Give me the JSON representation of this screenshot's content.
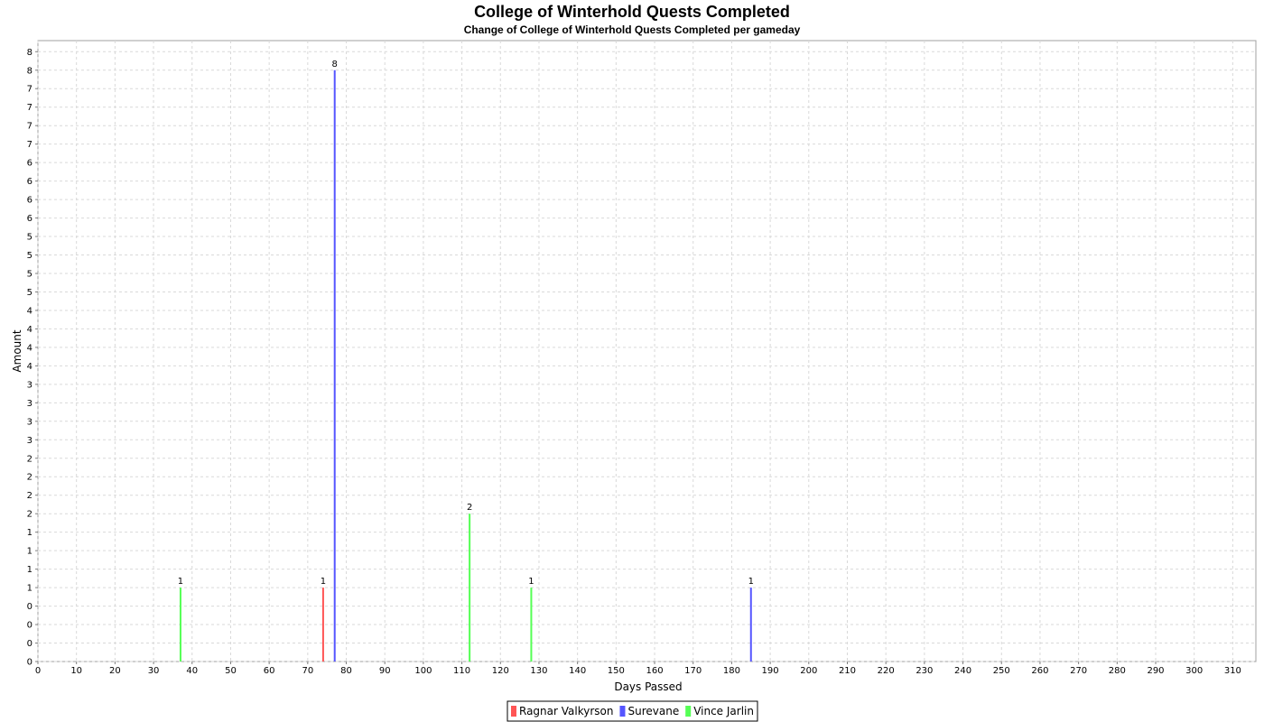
{
  "chart_data": {
    "type": "bar",
    "title": "College of Winterhold Quests Completed",
    "subtitle": "Change of College of Winterhold Quests Completed per gameday",
    "xlabel": "Days Passed",
    "ylabel": "Amount",
    "xlim": [
      0,
      316
    ],
    "ylim": [
      0,
      8.4
    ],
    "x_ticks": [
      0,
      10,
      20,
      30,
      40,
      50,
      60,
      70,
      80,
      90,
      100,
      110,
      120,
      130,
      140,
      150,
      160,
      170,
      180,
      190,
      200,
      210,
      220,
      230,
      240,
      250,
      260,
      270,
      280,
      290,
      300,
      310
    ],
    "y_tick_step": 0.25,
    "grid": true,
    "legend_position": "bottom-center",
    "series": [
      {
        "name": "Ragnar Valkyrson",
        "color": "#ff5555",
        "points": [
          {
            "x": 74,
            "y": 1
          }
        ]
      },
      {
        "name": "Surevane",
        "color": "#5555ff",
        "points": [
          {
            "x": 77,
            "y": 8
          },
          {
            "x": 185,
            "y": 1
          }
        ]
      },
      {
        "name": "Vince Jarlin",
        "color": "#55ff55",
        "points": [
          {
            "x": 37,
            "y": 1
          },
          {
            "x": 112,
            "y": 2
          },
          {
            "x": 128,
            "y": 1
          }
        ]
      }
    ]
  }
}
